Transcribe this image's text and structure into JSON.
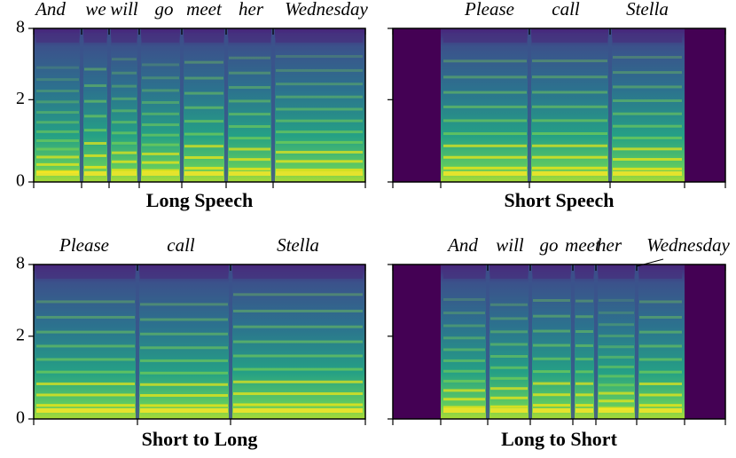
{
  "chart_data": [
    {
      "type": "spectrogram",
      "title": "Long Speech",
      "words": [
        "And",
        "we",
        "will",
        "go",
        "meet",
        "her",
        "Wednesday"
      ],
      "ylim": [
        0,
        8
      ],
      "yticks": [
        0,
        2,
        8
      ],
      "yscale": "mel"
    },
    {
      "type": "spectrogram",
      "title": "Short Speech",
      "words": [
        "Please",
        "call",
        "Stella"
      ],
      "ylim": [
        0,
        8
      ],
      "yticks": [
        0,
        2,
        8
      ],
      "yscale": "mel"
    },
    {
      "type": "spectrogram",
      "title": "Short to Long",
      "words": [
        "Please",
        "call",
        "Stella"
      ],
      "ylim": [
        0,
        8
      ],
      "yticks": [
        0,
        2,
        8
      ],
      "yscale": "mel"
    },
    {
      "type": "spectrogram",
      "title": "Long to Short",
      "words": [
        "And",
        "will",
        "go",
        "meet",
        "her",
        "Wednesday"
      ],
      "ylim": [
        0,
        8
      ],
      "yticks": [
        0,
        2,
        8
      ],
      "yscale": "mel"
    }
  ]
}
